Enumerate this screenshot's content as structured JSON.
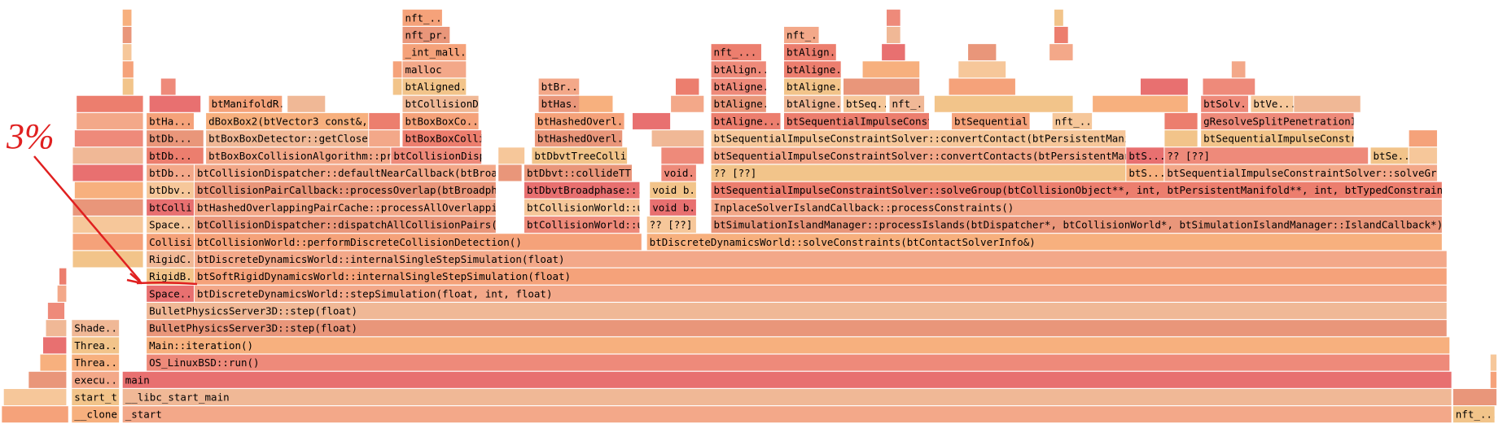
{
  "annotation": "3%",
  "frames": [
    {
      "label": "__clone"
    },
    {
      "label": "_start"
    },
    {
      "label": "nft_..."
    },
    {
      "label": "start_t..."
    },
    {
      "label": "__libc_start_main"
    },
    {
      "label": "execu..."
    },
    {
      "label": "main"
    },
    {
      "label": "Threa..."
    },
    {
      "label": "OS_LinuxBSD::run()"
    },
    {
      "label": "Threa..."
    },
    {
      "label": "Main::iteration()"
    },
    {
      "label": "Shade..."
    },
    {
      "label": "BulletPhysicsServer3D::step(float)"
    },
    {
      "label": "BulletPhysicsServer3D::step(float)"
    },
    {
      "label": "Space..."
    },
    {
      "label": "btDiscreteDynamicsWorld::stepSimulation(float, int, float)"
    },
    {
      "label": "RigidB..."
    },
    {
      "label": "btSoftRigidDynamicsWorld::internalSingleStepSimulation(float)"
    },
    {
      "label": "RigidC..."
    },
    {
      "label": "btDiscreteDynamicsWorld::internalSingleStepSimulation(float)"
    },
    {
      "label": "Collisi..."
    },
    {
      "label": "btCollisionWorld::performDiscreteCollisionDetection()"
    },
    {
      "label": "btDiscreteDynamicsWorld::solveConstraints(btContactSolverInfo&)"
    },
    {
      "label": "Space..."
    },
    {
      "label": "btCollisionDispatcher::dispatchAllCollisionPairs(b"
    },
    {
      "label": "btCollisionWorld::u"
    },
    {
      "label": "?? [??]"
    },
    {
      "label": "btSimulationIslandManager::processIslands(btDispatcher*, btCollisionWorld*, btSimulationIslandManager::IslandCallback*)"
    },
    {
      "label": "btColli..."
    },
    {
      "label": "btHashedOverlappingPairCache::processAllOverlappin"
    },
    {
      "label": "btCollisionWorld::u"
    },
    {
      "label": "void b..."
    },
    {
      "label": "InplaceSolverIslandCallback::processConstraints()"
    },
    {
      "label": "btDbv..."
    },
    {
      "label": "btCollisionPairCallback::processOverlap(btBroadpha"
    },
    {
      "label": "btDbvtBroadphase::..."
    },
    {
      "label": "void b..."
    },
    {
      "label": "btSequentialImpulseConstraintSolver::solveGroup(btCollisionObject**, int, btPersistentManifold**, int, btTypedConstraint**,"
    },
    {
      "label": "btDb..."
    },
    {
      "label": "btCollisionDispatcher::defaultNearCallback(btBroad"
    },
    {
      "label": "btDbvt::collideTT("
    },
    {
      "label": "void..."
    },
    {
      "label": "?? [??]"
    },
    {
      "label": "btS..."
    },
    {
      "label": "btSequentialImpulseConstraintSolver::solveGro"
    },
    {
      "label": "btDb..."
    },
    {
      "label": "btBoxBoxCollisionAlgorithm::pro"
    },
    {
      "label": "btCollisionDisp"
    },
    {
      "label": "btDbvtTreeColli"
    },
    {
      "label": "btSequentialImpulseConstraintSolver::convertContacts(btPersistentManif"
    },
    {
      "label": "btS..."
    },
    {
      "label": "?? [??]"
    },
    {
      "label": "btSe..."
    },
    {
      "label": "btDb..."
    },
    {
      "label": "btBoxBoxDetector::getCloses"
    },
    {
      "label": "btBoxBoxCollis..."
    },
    {
      "label": "btHashedOverl..."
    },
    {
      "label": "btSequentialImpulseConstraintSolver::convertContact(btPersistentManifo"
    },
    {
      "label": "btSequentialImpulseConstr"
    },
    {
      "label": "btHa..."
    },
    {
      "label": "dBoxBox2(btVector3 const&,."
    },
    {
      "label": "btBoxBoxCo..."
    },
    {
      "label": "btHashedOverl..."
    },
    {
      "label": "btAligne..."
    },
    {
      "label": "btSequentialImpulseConst"
    },
    {
      "label": "btSequential..."
    },
    {
      "label": "nft_..."
    },
    {
      "label": "gResolveSplitPenetrationI"
    },
    {
      "label": "btManifoldR..."
    },
    {
      "label": "btCollisionD"
    },
    {
      "label": "btHas..."
    },
    {
      "label": "btAligne..."
    },
    {
      "label": "btAligne..."
    },
    {
      "label": "btSeq..."
    },
    {
      "label": "nft_..."
    },
    {
      "label": "btSolv..."
    },
    {
      "label": "btVe..."
    },
    {
      "label": "btAligned..."
    },
    {
      "label": "btBr..."
    },
    {
      "label": "btAligne..."
    },
    {
      "label": "btAligne..."
    },
    {
      "label": "malloc"
    },
    {
      "label": "btAlign..."
    },
    {
      "label": "btAligne..."
    },
    {
      "label": "_int_mall..."
    },
    {
      "label": "nft_..."
    },
    {
      "label": "btAlign..."
    },
    {
      "label": "nft_pr..."
    },
    {
      "label": "nft_..."
    },
    {
      "label": "nft_..."
    }
  ]
}
